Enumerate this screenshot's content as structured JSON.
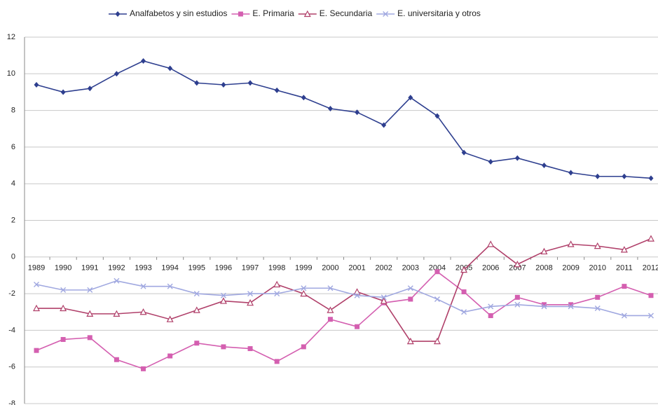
{
  "chart_data": {
    "type": "line",
    "categories": [
      "1989",
      "1990",
      "1991",
      "1992",
      "1993",
      "1994",
      "1995",
      "1996",
      "1997",
      "1998",
      "1999",
      "2000",
      "2001",
      "2002",
      "2003",
      "2004",
      "2005",
      "2006",
      "2007",
      "2008",
      "2009",
      "2010",
      "2011",
      "2012"
    ],
    "series": [
      {
        "name": "Analfabetos y sin estudios",
        "color": "#2e3f8f",
        "marker": "diamond",
        "values": [
          9.4,
          9.0,
          9.2,
          10.0,
          10.7,
          10.3,
          9.5,
          9.4,
          9.5,
          9.1,
          8.7,
          8.1,
          7.9,
          7.2,
          8.7,
          7.7,
          5.7,
          5.2,
          5.4,
          5.0,
          4.6,
          4.4,
          4.4,
          4.3
        ]
      },
      {
        "name": "E. Primaria",
        "color": "#d45fb0",
        "marker": "square",
        "values": [
          -5.1,
          -4.5,
          -4.4,
          -5.6,
          -6.1,
          -5.4,
          -4.7,
          -4.9,
          -5.0,
          -5.7,
          -4.9,
          -3.4,
          -3.8,
          -2.5,
          -2.3,
          -0.8,
          -1.9,
          -3.2,
          -2.2,
          -2.6,
          -2.6,
          -2.2,
          -1.6,
          -2.1
        ]
      },
      {
        "name": "E. Secundaria",
        "color": "#b0406a",
        "marker": "triangle",
        "values": [
          -2.8,
          -2.8,
          -3.1,
          -3.1,
          -3.0,
          -3.4,
          -2.9,
          -2.4,
          -2.5,
          -1.5,
          -2.0,
          -2.9,
          -1.9,
          -2.4,
          -4.6,
          -4.6,
          -0.7,
          0.7,
          -0.4,
          0.3,
          0.7,
          0.6,
          0.4,
          1.0
        ]
      },
      {
        "name": "E. universitaria y otros",
        "color": "#a0a8e0",
        "marker": "x",
        "values": [
          -1.5,
          -1.8,
          -1.8,
          -1.3,
          -1.6,
          -1.6,
          -2.0,
          -2.1,
          -2.0,
          -2.0,
          -1.7,
          -1.7,
          -2.1,
          -2.2,
          -1.7,
          -2.3,
          -3.0,
          -2.7,
          -2.6,
          -2.7,
          -2.7,
          -2.8,
          -3.2,
          -3.2
        ]
      }
    ],
    "ylim": [
      -8,
      12
    ],
    "yticks": [
      -8,
      -6,
      -4,
      -2,
      0,
      2,
      4,
      6,
      8,
      10,
      12
    ],
    "grid": true,
    "legend": "top"
  }
}
